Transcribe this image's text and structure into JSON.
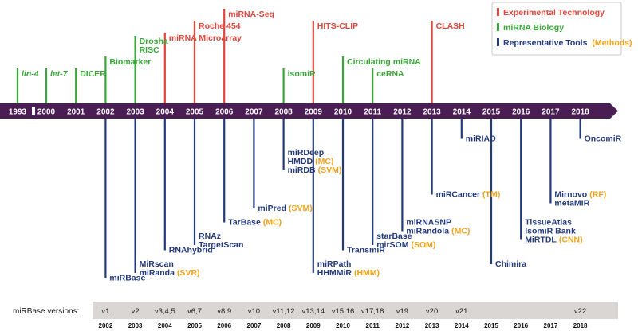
{
  "timeline": {
    "years": [
      "1993",
      "2000",
      "2001",
      "2002",
      "2003",
      "2004",
      "2005",
      "2006",
      "2007",
      "2008",
      "2009",
      "2010",
      "2011",
      "2012",
      "2013",
      "2014",
      "2015",
      "2016",
      "2017",
      "2018"
    ]
  },
  "colors": {
    "experimental": "#e0463a",
    "biology": "#3aa63a",
    "tools": "#233a7c",
    "method": "#f0a21c",
    "timeline": "#4a1d55",
    "versions_band": "#d9d6d3"
  },
  "legend": {
    "experimental": "Experimental Technology",
    "biology": "miRNA Biology",
    "tools": "Representative Tools",
    "tools_method": "(Methods)"
  },
  "top_events": [
    {
      "year": "1993",
      "category": "biology",
      "level": 1,
      "lines": [
        {
          "text": "lin-4",
          "italic": true
        }
      ]
    },
    {
      "year": "2000",
      "category": "biology",
      "level": 1,
      "lines": [
        {
          "text": "let-7",
          "italic": true
        }
      ]
    },
    {
      "year": "2001",
      "category": "biology",
      "level": 1,
      "lines": [
        {
          "text": "DICER"
        }
      ]
    },
    {
      "year": "2002",
      "category": "biology",
      "level": 2,
      "lines": [
        {
          "text": "Biomarker"
        }
      ]
    },
    {
      "year": "2003",
      "category": "biology",
      "level": 3,
      "lines": [
        {
          "text": "Drosha"
        },
        {
          "text": "RISC"
        }
      ]
    },
    {
      "year": "2004",
      "category": "experimental",
      "level": 4,
      "lines": [
        {
          "text": "miRNA Microarray"
        }
      ]
    },
    {
      "year": "2005",
      "category": "experimental",
      "level": 5,
      "lines": [
        {
          "text": "Roche 454"
        }
      ]
    },
    {
      "year": "2006",
      "category": "experimental",
      "level": 6,
      "lines": [
        {
          "text": "miRNA-Seq"
        }
      ]
    },
    {
      "year": "2008",
      "category": "biology",
      "level": 1,
      "lines": [
        {
          "text": "isomiR"
        }
      ]
    },
    {
      "year": "2009",
      "category": "experimental",
      "level": 5,
      "lines": [
        {
          "text": "HITS-CLIP"
        }
      ]
    },
    {
      "year": "2010",
      "category": "biology",
      "level": 2,
      "lines": [
        {
          "text": "Circulating miRNA"
        }
      ]
    },
    {
      "year": "2011",
      "category": "biology",
      "level": 1,
      "lines": [
        {
          "text": "ceRNA"
        }
      ]
    },
    {
      "year": "2013",
      "category": "experimental",
      "level": 5,
      "lines": [
        {
          "text": "CLASH"
        }
      ]
    }
  ],
  "bottom_events": [
    {
      "year": "2002",
      "level": 11,
      "lines": [
        {
          "text": "miRBase"
        }
      ]
    },
    {
      "year": "2003",
      "level": 10,
      "lines": [
        {
          "text": "MiRscan"
        },
        {
          "text": "miRanda",
          "method": "(SVR)"
        }
      ]
    },
    {
      "year": "2004",
      "level": 9,
      "lines": [
        {
          "text": "RNAhybrid"
        }
      ]
    },
    {
      "year": "2005",
      "level": 8,
      "lines": [
        {
          "text": "RNAz"
        },
        {
          "text": "TargetScan"
        }
      ]
    },
    {
      "year": "2006",
      "level": 7,
      "lines": [
        {
          "text": "TarBase",
          "method": "(MC)"
        }
      ]
    },
    {
      "year": "2007",
      "level": 6,
      "lines": [
        {
          "text": "miPred",
          "method": "(SVM)"
        }
      ]
    },
    {
      "year": "2008",
      "level": 2,
      "lines": [
        {
          "text": "miRDeep"
        },
        {
          "text": "HMDD",
          "method": "(MC)"
        },
        {
          "text": "miRDB",
          "method": "(SVM)"
        }
      ]
    },
    {
      "year": "2009",
      "level": 10,
      "lines": [
        {
          "text": "miRPath"
        },
        {
          "text": "HHMMiR",
          "method": "(HMM)"
        }
      ]
    },
    {
      "year": "2010",
      "level": 9,
      "lines": [
        {
          "text": "TransmiR"
        }
      ]
    },
    {
      "year": "2011",
      "level": 8,
      "lines": [
        {
          "text": "starBase"
        },
        {
          "text": "mirSOM",
          "method": "(SOM)"
        }
      ]
    },
    {
      "year": "2012",
      "level": 7,
      "lines": [
        {
          "text": "miRNASNP"
        },
        {
          "text": "miRandola",
          "method": "(MC)"
        }
      ]
    },
    {
      "year": "2013",
      "level": 5,
      "lines": [
        {
          "text": "miRCancer",
          "method": "(TM)"
        }
      ]
    },
    {
      "year": "2014",
      "level": 1,
      "lines": [
        {
          "text": "miRIAD"
        }
      ]
    },
    {
      "year": "2015",
      "level": 10,
      "lines": [
        {
          "text": "Chimira"
        }
      ]
    },
    {
      "year": "2016",
      "level": 7,
      "lines": [
        {
          "text": "TissueAtlas"
        },
        {
          "text": "IsomiR Bank"
        },
        {
          "text": "MiRTDL",
          "method": "(CNN)"
        }
      ]
    },
    {
      "year": "2017",
      "level": 5,
      "lines": [
        {
          "text": "Mirnovo",
          "method": "(RF)"
        },
        {
          "text": "metaMIR"
        }
      ]
    },
    {
      "year": "2018",
      "level": 1,
      "lines": [
        {
          "text": "OncomiR"
        }
      ]
    }
  ],
  "versions": {
    "caption": "miRBase versions:",
    "items": [
      {
        "year": "2002",
        "label": "v1"
      },
      {
        "year": "2003",
        "label": "v2"
      },
      {
        "year": "2004",
        "label": "v3,4,5"
      },
      {
        "year": "2005",
        "label": "v6,7"
      },
      {
        "year": "2006",
        "label": "v8,9"
      },
      {
        "year": "2007",
        "label": "v10"
      },
      {
        "year": "2008",
        "label": "v11,12"
      },
      {
        "year": "2009",
        "label": "v13,14"
      },
      {
        "year": "2010",
        "label": "v15,16"
      },
      {
        "year": "2011",
        "label": "v17,18"
      },
      {
        "year": "2012",
        "label": "v19"
      },
      {
        "year": "2013",
        "label": "v20"
      },
      {
        "year": "2014",
        "label": "v21"
      },
      {
        "year": "2018",
        "label": "v22"
      }
    ],
    "years": [
      "2002",
      "2003",
      "2004",
      "2005",
      "2006",
      "2007",
      "2008",
      "2009",
      "2010",
      "2011",
      "2012",
      "2013",
      "2014",
      "2015",
      "2016",
      "2017",
      "2018"
    ]
  }
}
